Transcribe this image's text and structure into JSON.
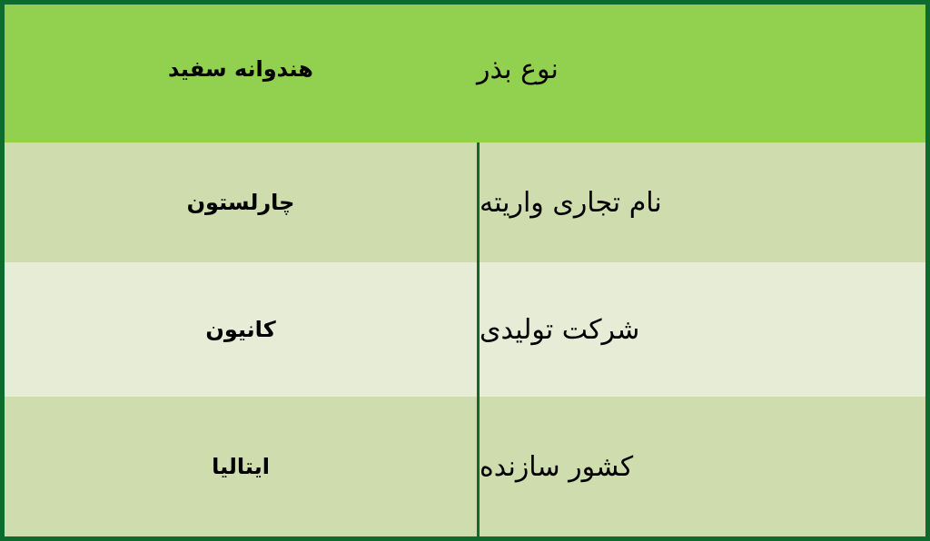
{
  "header": {
    "label": "نوع بذر",
    "value": "هندوانه سفید"
  },
  "rows": [
    {
      "label": "نام تجاری واریته",
      "value": "چارلستون"
    },
    {
      "label": "شرکت تولیدی",
      "value": "کانیون"
    },
    {
      "label": "کشور سازنده",
      "value": "ایتالیا"
    }
  ],
  "colors": {
    "header": "#92d050",
    "border": "#0e6b2e",
    "row_dark": "#cfdcae",
    "row_light": "#e6ecd6"
  }
}
